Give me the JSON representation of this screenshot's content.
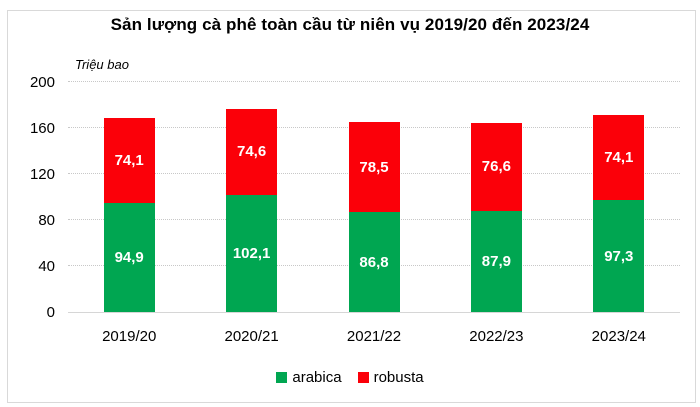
{
  "colors": {
    "arabica": "#00A651",
    "robusta": "#FB0009",
    "grid": "#C8C8C8",
    "axis_line": "#D6D6D6",
    "frame_border": "#D9D9D9",
    "bar_label_text": "#FFFFFF",
    "text": "#000000",
    "background": "#FFFFFF"
  },
  "legend": {
    "position": "bottom",
    "items": [
      {
        "label": "arabica",
        "color": "#00A651"
      },
      {
        "label": "robusta",
        "color": "#FB0009"
      }
    ]
  },
  "chart_data": {
    "type": "bar",
    "stacked": true,
    "title": "Sản lượng cà phê toàn cầu từ niên vụ 2019/20 đến 2023/24",
    "ylabel": "Triệu bao",
    "xlabel": "",
    "categories": [
      "2019/20",
      "2020/21",
      "2021/22",
      "2022/23",
      "2023/24"
    ],
    "series": [
      {
        "name": "arabica",
        "color": "#00A651",
        "values": [
          94.9,
          102.1,
          86.8,
          87.9,
          97.3
        ],
        "labels": [
          "94,9",
          "102,1",
          "86,8",
          "87,9",
          "97,3"
        ]
      },
      {
        "name": "robusta",
        "color": "#FB0009",
        "values": [
          74.1,
          74.6,
          78.5,
          76.6,
          74.1
        ],
        "labels": [
          "74,1",
          "74,6",
          "78,5",
          "76,6",
          "74,1"
        ]
      }
    ],
    "totals": [
      169.0,
      176.7,
      165.3,
      164.5,
      171.4
    ],
    "ylim": [
      0,
      200
    ],
    "yticks": [
      0,
      40,
      80,
      120,
      160,
      200
    ],
    "grid": true,
    "gridstyle": "dotted",
    "legend_position": "bottom"
  }
}
